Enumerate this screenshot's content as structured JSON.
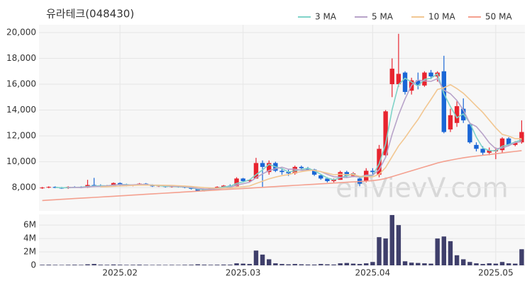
{
  "chart_data": [
    {
      "type": "candlestick",
      "title": "유라테크(048430)",
      "watermark": "enVievV.com",
      "up_color": "#e8242f",
      "down_color": "#1a66d6",
      "open": [
        7950,
        8000,
        8050,
        7980,
        7950,
        8050,
        8030,
        8000,
        8200,
        8150,
        8100,
        8150,
        8350,
        8200,
        8150,
        8200,
        8300,
        8180,
        8100,
        8150,
        8050,
        8100,
        8050,
        7980,
        7900,
        7750,
        7850,
        7950,
        8050,
        8150,
        8100,
        8700,
        8500,
        8700,
        9900,
        9200,
        9900,
        9300,
        9200,
        9100,
        9600,
        9500,
        9400,
        8950,
        8700,
        8500,
        8600,
        9200,
        8900,
        8700,
        8500,
        9300,
        9000,
        10500,
        16000,
        16000,
        16900,
        15500,
        16300,
        15900,
        16900,
        16600,
        17000,
        12500,
        13000,
        14100,
        12900,
        11300,
        11000,
        10700,
        10800,
        10900,
        11800,
        11300,
        11500
      ],
      "high": [
        8050,
        8100,
        8100,
        8050,
        8100,
        8100,
        8100,
        8600,
        8750,
        8250,
        8200,
        8400,
        8400,
        8300,
        8250,
        8350,
        8350,
        8250,
        8200,
        8200,
        8150,
        8150,
        8100,
        8050,
        7950,
        7900,
        8000,
        8100,
        8200,
        8250,
        8800,
        8750,
        8650,
        10300,
        10100,
        10100,
        10000,
        9500,
        9400,
        9700,
        9700,
        9600,
        9450,
        9000,
        8800,
        8700,
        9300,
        9300,
        9200,
        8800,
        9500,
        9500,
        11300,
        14000,
        18000,
        19900,
        17000,
        16500,
        16900,
        17000,
        17100,
        17000,
        18200,
        14100,
        14700,
        14900,
        13000,
        11500,
        11200,
        11100,
        11100,
        11900,
        11900,
        11600,
        13200
      ],
      "low": [
        7900,
        7950,
        7950,
        7900,
        7900,
        8000,
        7950,
        7980,
        8050,
        8050,
        8050,
        8100,
        8150,
        8100,
        8100,
        8150,
        8150,
        8050,
        8050,
        8000,
        8000,
        8000,
        7950,
        7850,
        7700,
        7700,
        7800,
        7900,
        8000,
        8050,
        8100,
        8450,
        8400,
        8700,
        8000,
        9000,
        9200,
        9000,
        8900,
        9000,
        9400,
        9300,
        8900,
        8600,
        8400,
        8400,
        8600,
        8800,
        8800,
        8100,
        8400,
        9000,
        8800,
        10300,
        15000,
        15800,
        15200,
        15200,
        15600,
        15800,
        16400,
        16200,
        12200,
        12300,
        12700,
        13000,
        11400,
        10800,
        10500,
        10500,
        10200,
        10700,
        11200,
        11200,
        11400
      ],
      "close": [
        8000,
        8050,
        7980,
        7950,
        8050,
        8030,
        8000,
        8200,
        8150,
        8100,
        8150,
        8350,
        8200,
        8150,
        8200,
        8300,
        8180,
        8100,
        8150,
        8050,
        8100,
        8050,
        8000,
        7900,
        7750,
        7850,
        7950,
        8050,
        8150,
        8100,
        8700,
        8500,
        8600,
        9900,
        9600,
        9900,
        9300,
        9200,
        9100,
        9600,
        9500,
        9400,
        9000,
        8700,
        8500,
        8600,
        9200,
        8900,
        9100,
        8300,
        9300,
        9200,
        11000,
        13900,
        17200,
        16800,
        15400,
        16300,
        15900,
        16900,
        16600,
        16900,
        12300,
        13600,
        14300,
        13200,
        11500,
        11000,
        10700,
        10900,
        10900,
        11800,
        11300,
        11500,
        12300
      ],
      "series": [
        {
          "name": "3 MA",
          "color": "#7fd3c8",
          "values": [
            null,
            null,
            8010,
            7993,
            7993,
            8010,
            8027,
            8077,
            8117,
            8150,
            8133,
            8200,
            8233,
            8233,
            8183,
            8217,
            8227,
            8193,
            8143,
            8100,
            8100,
            8067,
            8050,
            7983,
            7883,
            7833,
            7850,
            7950,
            8050,
            8100,
            8317,
            8433,
            8600,
            9000,
            9367,
            9800,
            9600,
            9467,
            9200,
            9300,
            9400,
            9500,
            9300,
            9033,
            8733,
            8600,
            8767,
            8900,
            9067,
            8767,
            8900,
            8933,
            9833,
            11367,
            14033,
            15967,
            16467,
            16167,
            15867,
            16367,
            16467,
            16800,
            15267,
            14267,
            13400,
            13700,
            13000,
            11900,
            11067,
            10867,
            10833,
            11200,
            11333,
            11533,
            11700
          ]
        },
        {
          "name": "5 MA",
          "color": "#b8a3c9",
          "values": [
            null,
            null,
            null,
            null,
            8006,
            8012,
            8002,
            8046,
            8086,
            8096,
            8120,
            8190,
            8230,
            8190,
            8210,
            8240,
            8236,
            8186,
            8186,
            8156,
            8116,
            8090,
            8070,
            8020,
            7930,
            7890,
            7880,
            7900,
            7950,
            8020,
            8190,
            8300,
            8410,
            8760,
            9060,
            9320,
            9460,
            9580,
            9420,
            9420,
            9340,
            9360,
            9320,
            9240,
            9020,
            8840,
            8800,
            8780,
            8860,
            8820,
            8960,
            8960,
            9380,
            10340,
            12120,
            13620,
            14860,
            15920,
            16320,
            16260,
            16220,
            16420,
            15540,
            15260,
            14740,
            14000,
            12980,
            12720,
            12140,
            11460,
            11000,
            11060,
            11240,
            11480,
            11560
          ]
        },
        {
          "name": "10 MA",
          "color": "#f2c792",
          "values": [
            null,
            null,
            null,
            null,
            null,
            null,
            null,
            null,
            null,
            8051,
            8066,
            8096,
            8118,
            8138,
            8164,
            8189,
            8191,
            8181,
            8181,
            8176,
            8171,
            8141,
            8121,
            8091,
            8041,
            7996,
            7966,
            7951,
            7951,
            7951,
            8016,
            8061,
            8121,
            8311,
            8496,
            8676,
            8811,
            8926,
            9001,
            9151,
            9231,
            9311,
            9351,
            9231,
            9121,
            8991,
            9031,
            9001,
            9001,
            8871,
            8851,
            8831,
            9031,
            9551,
            10401,
            11221,
            11861,
            12591,
            13271,
            14071,
            14821,
            15591,
            15721,
            15961,
            15661,
            15301,
            14811,
            14311,
            13821,
            13221,
            12621,
            12121,
            11981,
            11781,
            11781
          ]
        },
        {
          "name": "50 MA",
          "color": "#f4a08f",
          "values": [
            7000,
            7030,
            7060,
            7090,
            7120,
            7150,
            7180,
            7210,
            7240,
            7270,
            7300,
            7330,
            7360,
            7390,
            7420,
            7450,
            7480,
            7510,
            7540,
            7570,
            7600,
            7630,
            7660,
            7690,
            7720,
            7750,
            7780,
            7810,
            7840,
            7870,
            7900,
            7930,
            7960,
            7990,
            8020,
            8050,
            8080,
            8110,
            8140,
            8170,
            8200,
            8230,
            8260,
            8290,
            8320,
            8350,
            8380,
            8410,
            8440,
            8470,
            8500,
            8540,
            8600,
            8700,
            8850,
            9000,
            9150,
            9300,
            9450,
            9600,
            9750,
            9900,
            10020,
            10120,
            10220,
            10300,
            10380,
            10440,
            10500,
            10560,
            10620,
            10680,
            10740,
            10800,
            10860
          ]
        }
      ],
      "legend": "top-right",
      "grid": true,
      "ylim": [
        6200,
        20600
      ],
      "yticks": [
        {
          "value": 8000,
          "label": "8,000"
        },
        {
          "value": 10000,
          "label": "10,000"
        },
        {
          "value": 12000,
          "label": "12,000"
        },
        {
          "value": 14000,
          "label": "14,000"
        },
        {
          "value": 16000,
          "label": "16,000"
        },
        {
          "value": 18000,
          "label": "18,000"
        },
        {
          "value": 20000,
          "label": "20,000"
        }
      ]
    },
    {
      "type": "bar",
      "color": "#3f3f6b",
      "grid": true,
      "categories": [
        null,
        null,
        null,
        null,
        null,
        null,
        null,
        null,
        null,
        null,
        null,
        null,
        "2025.02",
        null,
        null,
        null,
        null,
        null,
        null,
        null,
        null,
        null,
        null,
        null,
        null,
        null,
        null,
        null,
        null,
        null,
        null,
        "2025.03",
        null,
        null,
        null,
        null,
        null,
        null,
        null,
        null,
        null,
        null,
        null,
        null,
        null,
        null,
        null,
        null,
        null,
        null,
        null,
        "2025.04",
        null,
        null,
        null,
        null,
        null,
        null,
        null,
        null,
        null,
        null,
        null,
        null,
        null,
        null,
        null,
        null,
        null,
        null,
        "2025.05",
        null,
        null,
        null,
        null
      ],
      "values": [
        80000,
        90000,
        70000,
        60000,
        80000,
        90000,
        70000,
        150000,
        200000,
        90000,
        80000,
        120000,
        90000,
        70000,
        80000,
        100000,
        70000,
        60000,
        70000,
        60000,
        70000,
        60000,
        80000,
        90000,
        150000,
        100000,
        80000,
        90000,
        110000,
        100000,
        300000,
        250000,
        200000,
        2200000,
        1600000,
        900000,
        300000,
        200000,
        150000,
        200000,
        150000,
        120000,
        110000,
        200000,
        150000,
        120000,
        300000,
        350000,
        250000,
        200000,
        300000,
        500000,
        4200000,
        4000000,
        7500000,
        6000000,
        600000,
        400000,
        350000,
        300000,
        250000,
        4000000,
        4300000,
        3600000,
        1500000,
        900000,
        500000,
        300000,
        200000,
        300000,
        250000,
        500000,
        300000,
        250000,
        2400000
      ],
      "ylim": [
        0,
        7600000
      ],
      "yticks": [
        0,
        {
          "value": 2000000,
          "label": "2M"
        },
        {
          "value": 4000000,
          "label": "4M"
        },
        {
          "value": 6000000,
          "label": "6M"
        }
      ]
    }
  ]
}
